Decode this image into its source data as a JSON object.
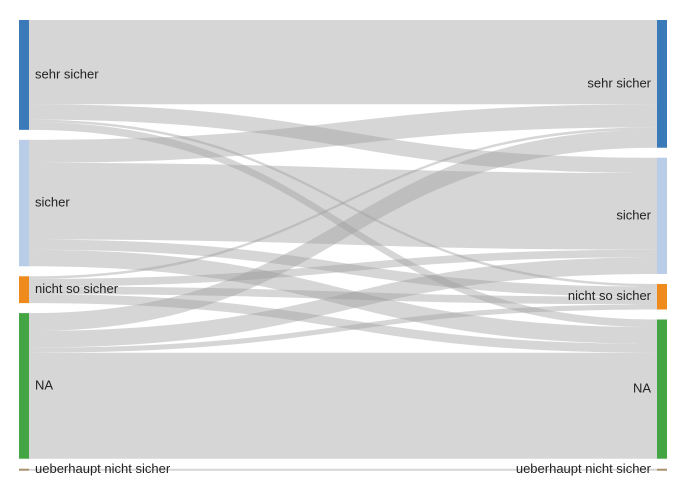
{
  "chart_data": {
    "type": "sankey",
    "title": "",
    "left_nodes": [
      {
        "id": "L_sehr",
        "label": "sehr sicher",
        "color": "#3b7ab8",
        "value": 86
      },
      {
        "id": "L_sicher",
        "label": "sicher",
        "color": "#b9cde9",
        "value": 99
      },
      {
        "id": "L_nicht",
        "label": "nicht so sicher",
        "color": "#ef8a1d",
        "value": 21
      },
      {
        "id": "L_NA",
        "label": "NA",
        "color": "#43a544",
        "value": 114
      },
      {
        "id": "L_ueber",
        "label": "ueberhaupt nicht sicher",
        "color": "#a89070",
        "value": 1
      }
    ],
    "right_nodes": [
      {
        "id": "R_sehr",
        "label": "sehr sicher",
        "color": "#3b7ab8",
        "value": 100
      },
      {
        "id": "R_sicher",
        "label": "sicher",
        "color": "#b9cde9",
        "value": 91
      },
      {
        "id": "R_nicht",
        "label": "nicht so sicher",
        "color": "#ef8a1d",
        "value": 20
      },
      {
        "id": "R_NA",
        "label": "NA",
        "color": "#43a544",
        "value": 109
      },
      {
        "id": "R_ueber",
        "label": "ueberhaupt nicht sicher",
        "color": "#a89070",
        "value": 1
      }
    ],
    "links": [
      {
        "source": "L_sehr",
        "target": "R_sehr",
        "value": 66
      },
      {
        "source": "L_sehr",
        "target": "R_sicher",
        "value": 12
      },
      {
        "source": "L_sehr",
        "target": "R_nicht",
        "value": 2
      },
      {
        "source": "L_sehr",
        "target": "R_NA",
        "value": 6
      },
      {
        "source": "L_sicher",
        "target": "R_sehr",
        "value": 18
      },
      {
        "source": "L_sicher",
        "target": "R_sicher",
        "value": 60
      },
      {
        "source": "L_sicher",
        "target": "R_nicht",
        "value": 8
      },
      {
        "source": "L_sicher",
        "target": "R_NA",
        "value": 13
      },
      {
        "source": "L_nicht",
        "target": "R_sehr",
        "value": 2
      },
      {
        "source": "L_nicht",
        "target": "R_sicher",
        "value": 6
      },
      {
        "source": "L_nicht",
        "target": "R_nicht",
        "value": 6
      },
      {
        "source": "L_nicht",
        "target": "R_NA",
        "value": 7
      },
      {
        "source": "L_NA",
        "target": "R_sehr",
        "value": 14
      },
      {
        "source": "L_NA",
        "target": "R_sicher",
        "value": 13
      },
      {
        "source": "L_NA",
        "target": "R_nicht",
        "value": 4
      },
      {
        "source": "L_NA",
        "target": "R_NA",
        "value": 83
      },
      {
        "source": "L_ueber",
        "target": "R_ueber",
        "value": 1
      }
    ]
  }
}
